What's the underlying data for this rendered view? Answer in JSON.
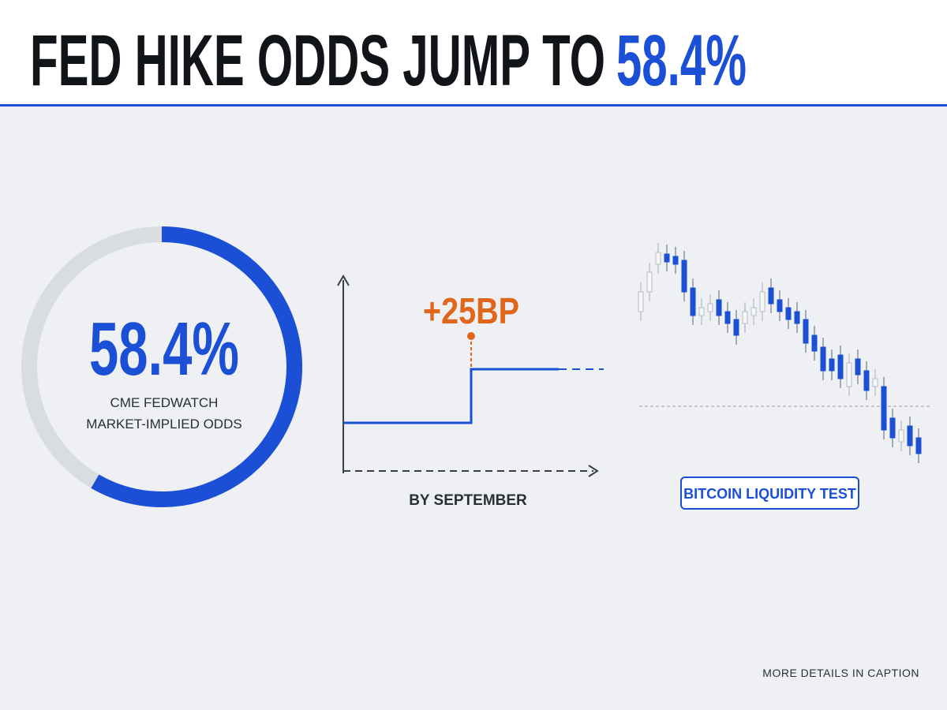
{
  "header": {
    "title": "FED HIKE ODDS JUMP TO",
    "highlight": "58.4%"
  },
  "gauge": {
    "value": 58.4,
    "range": [
      0,
      100
    ],
    "label": "58.4%",
    "caption": [
      "CME FEDWATCH",
      "MARKET-IMPLIED ODDS"
    ]
  },
  "step_chart": {
    "annotation": "+25BP",
    "x_label": "BY SEPTEMBER"
  },
  "candlestick": {
    "badge": "BITCOIN LIQUIDITY TEST"
  },
  "footer": "MORE DETAILS IN CAPTION"
}
